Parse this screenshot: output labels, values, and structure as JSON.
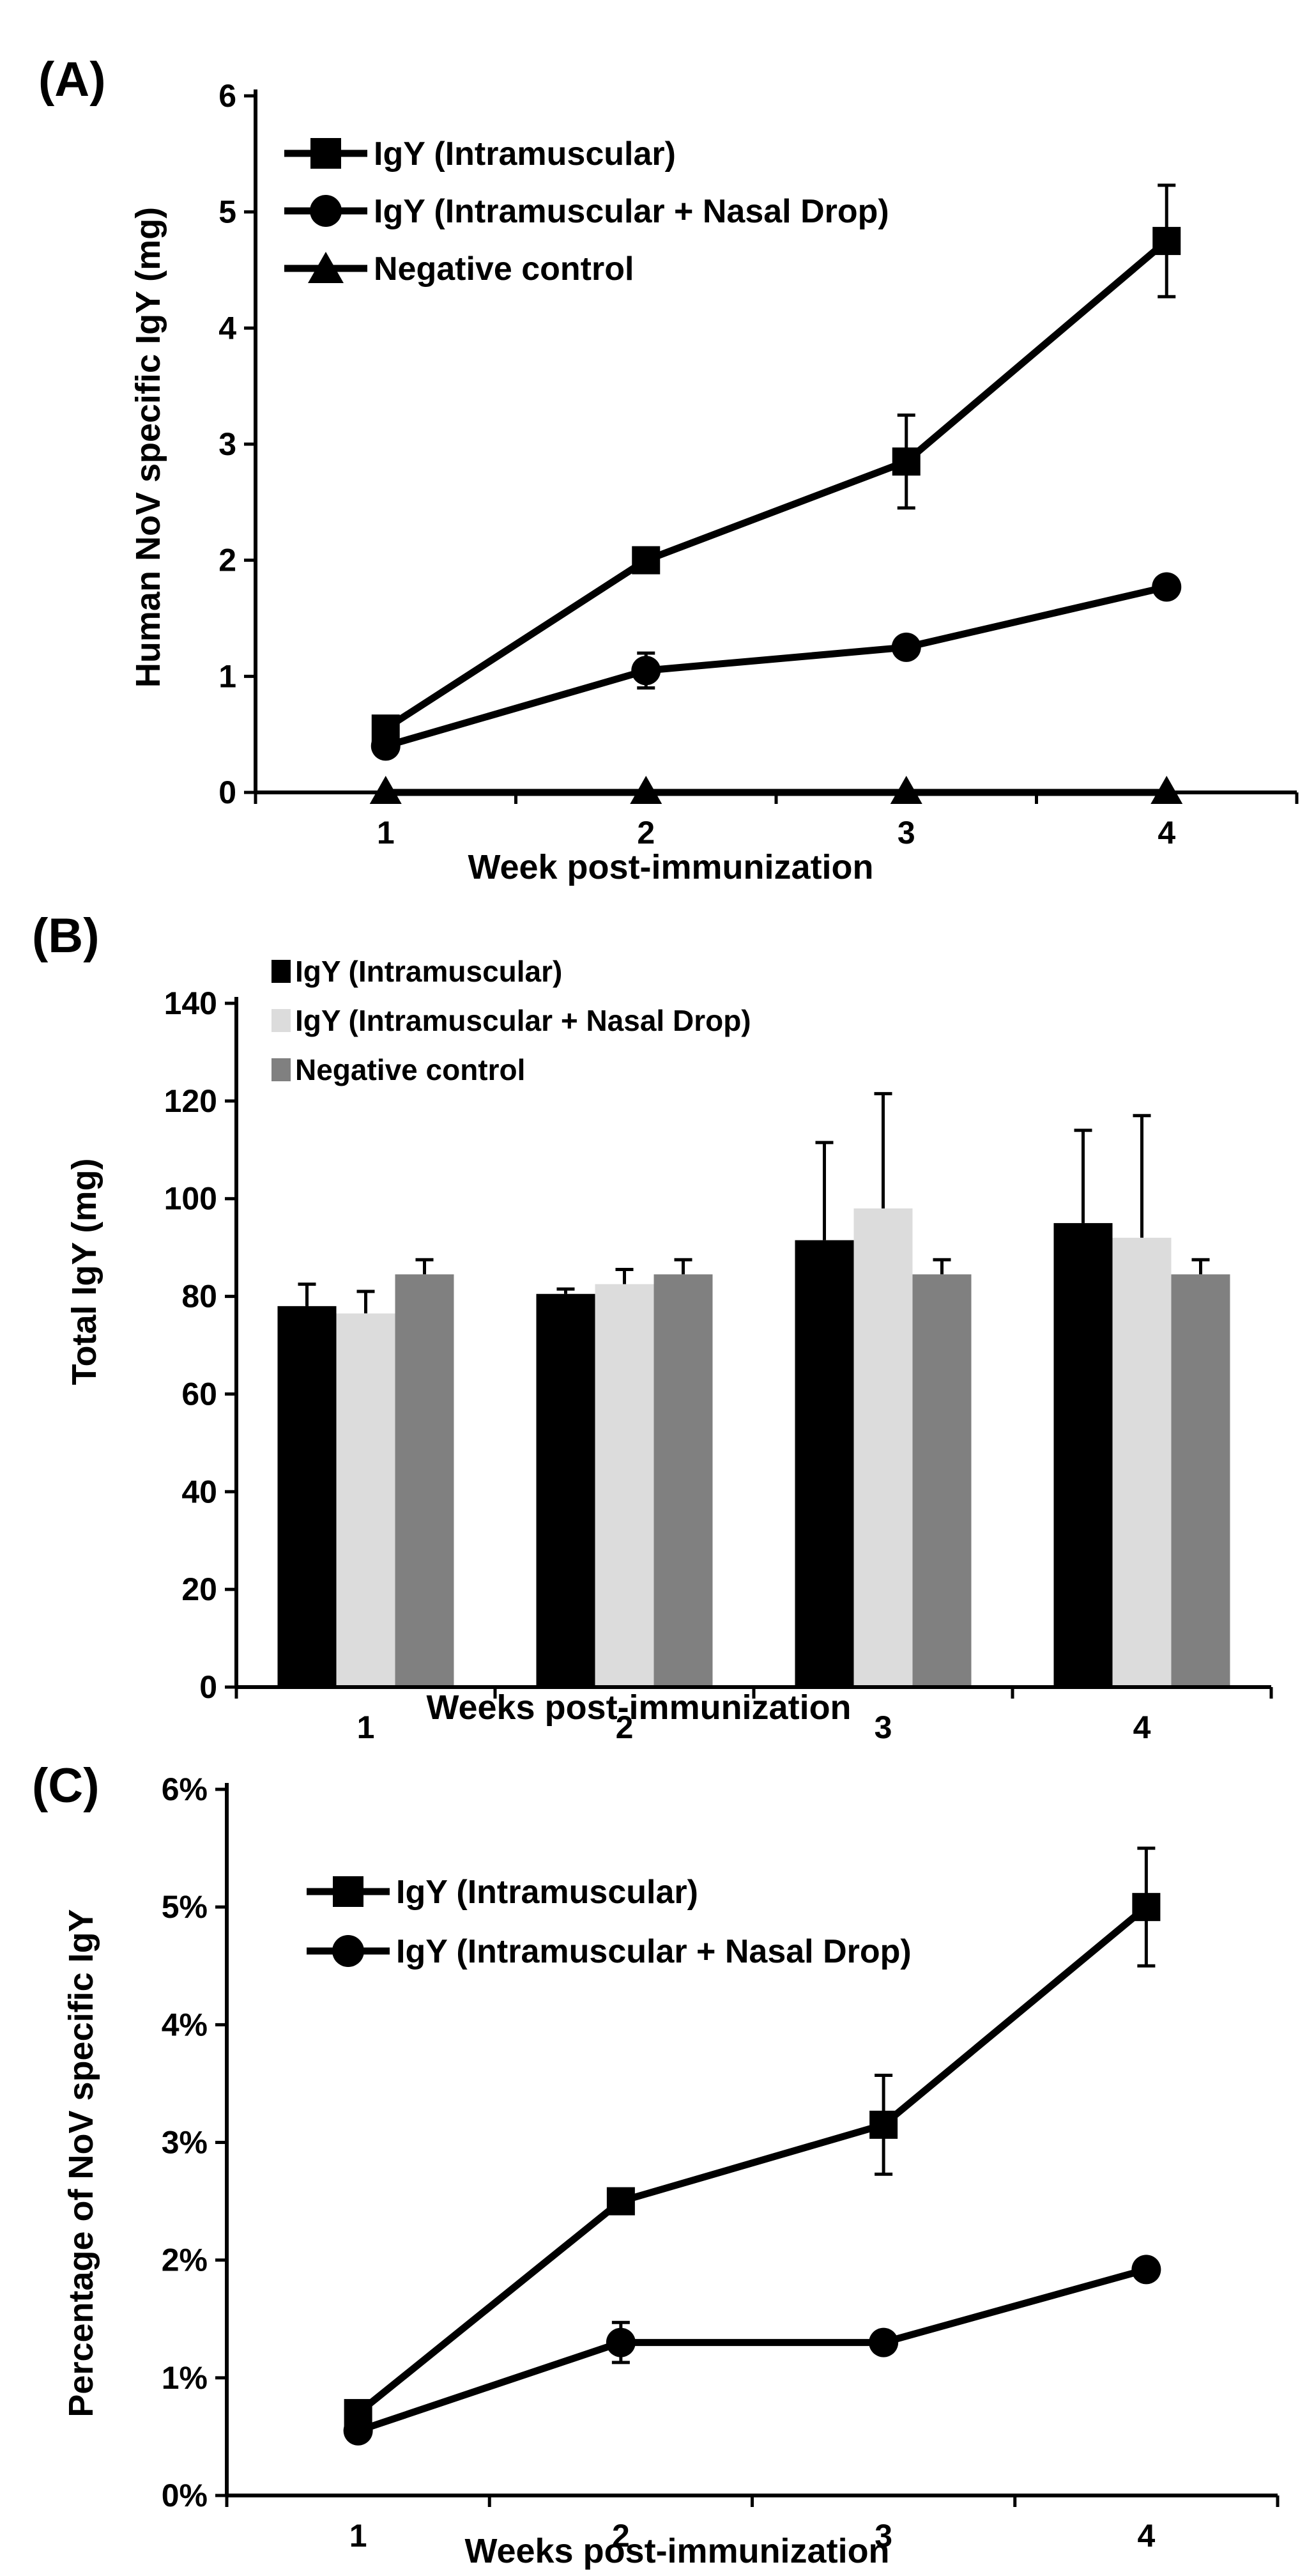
{
  "figure": {
    "panels": [
      "(A)",
      "(B)",
      "(C)"
    ]
  },
  "chart_data": [
    {
      "panel_label": "(A)",
      "type": "line",
      "xlabel": "Week post-immunization",
      "ylabel": "Human NoV specific IgY (mg)",
      "categories": [
        "1",
        "2",
        "3",
        "4"
      ],
      "ylim": [
        0,
        6
      ],
      "yticks": [
        "0",
        "1",
        "2",
        "3",
        "4",
        "5",
        "6"
      ],
      "grid": false,
      "legend": "top-left",
      "series": [
        {
          "name": "IgY (Intramuscular)",
          "marker": "square",
          "values": [
            0.55,
            2.0,
            2.85,
            4.75
          ],
          "errors": [
            0.05,
            0.05,
            0.4,
            0.48
          ]
        },
        {
          "name": "IgY (Intramuscular + Nasal Drop)",
          "marker": "circle",
          "values": [
            0.4,
            1.05,
            1.25,
            1.77
          ],
          "errors": [
            0.03,
            0.15,
            0.08,
            0.03
          ]
        },
        {
          "name": "Negative control",
          "marker": "triangle",
          "values": [
            0,
            0,
            0,
            0
          ],
          "errors": [
            0,
            0,
            0,
            0
          ]
        }
      ]
    },
    {
      "panel_label": "(B)",
      "type": "bar",
      "xlabel": "Weeks post-immunization",
      "ylabel": "Total IgY  (mg)",
      "categories": [
        "1",
        "2",
        "3",
        "4"
      ],
      "ylim": [
        0,
        140
      ],
      "yticks": [
        "0",
        "20",
        "40",
        "60",
        "80",
        "100",
        "120",
        "140"
      ],
      "grid": false,
      "legend": "top-left",
      "series": [
        {
          "name": "IgY (Intramuscular)",
          "color": "#000000",
          "values": [
            78,
            80.5,
            91.5,
            95
          ],
          "errors": [
            4.5,
            1,
            20,
            19
          ]
        },
        {
          "name": "IgY (Intramuscular + Nasal Drop)",
          "color": "#dcdcdc",
          "values": [
            76.5,
            82.5,
            98,
            92
          ],
          "errors": [
            4.5,
            3,
            23.5,
            25
          ]
        },
        {
          "name": "Negative control",
          "color": "#808080",
          "values": [
            84.5,
            84.5,
            84.5,
            84.5
          ],
          "errors": [
            3,
            3,
            3,
            3
          ]
        }
      ]
    },
    {
      "panel_label": "(C)",
      "type": "line",
      "xlabel": "Weeks post-immunization",
      "ylabel": "Percentage of NoV specific IgY",
      "categories": [
        "1",
        "2",
        "3",
        "4"
      ],
      "ylim": [
        0,
        6
      ],
      "yticks": [
        "0%",
        "1%",
        "2%",
        "3%",
        "4%",
        "5%",
        "6%"
      ],
      "grid": false,
      "legend": "top-left",
      "series": [
        {
          "name": "IgY (Intramuscular)",
          "marker": "square",
          "values": [
            0.7,
            2.5,
            3.15,
            5.0
          ],
          "errors": [
            0.05,
            0.05,
            0.42,
            0.5
          ]
        },
        {
          "name": "IgY (Intramuscular + Nasal Drop)",
          "marker": "circle",
          "values": [
            0.55,
            1.3,
            1.3,
            1.92
          ],
          "errors": [
            0.05,
            0.17,
            0.08,
            0.03
          ]
        }
      ]
    }
  ]
}
